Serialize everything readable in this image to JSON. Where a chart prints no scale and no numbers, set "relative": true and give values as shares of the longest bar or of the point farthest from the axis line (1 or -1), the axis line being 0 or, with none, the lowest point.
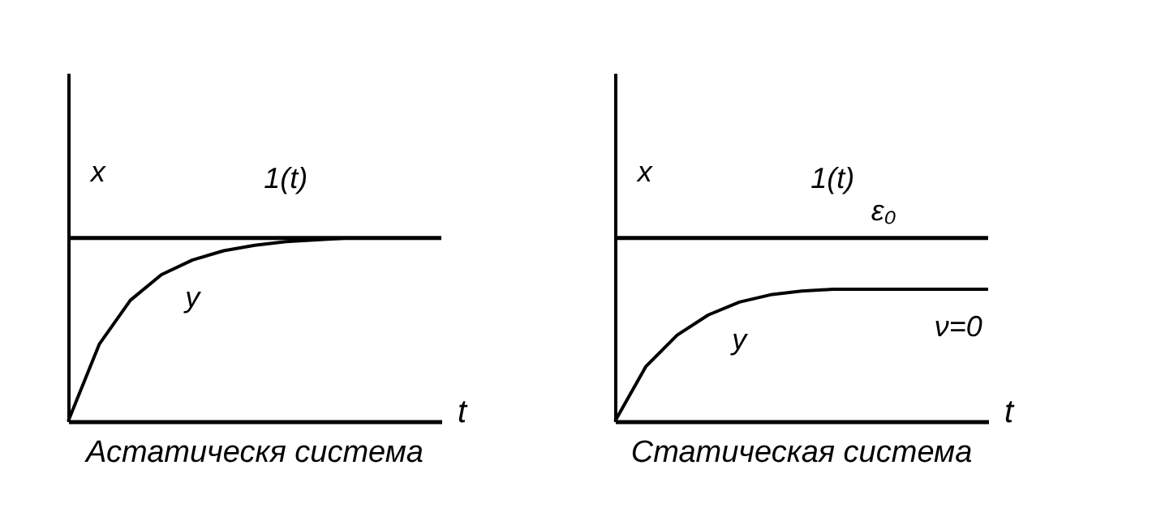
{
  "chart_data": [
    {
      "type": "line",
      "title": "Астатическя система",
      "xlabel": "t",
      "relative": true,
      "line_style": "solid",
      "categories": [
        null,
        null,
        null,
        null,
        null,
        null,
        null,
        null,
        null,
        null,
        null,
        null,
        null
      ],
      "series": [
        {
          "name": "1(t)",
          "color": "#000000",
          "values": [
            1,
            1,
            1,
            1,
            1,
            1,
            1,
            1,
            1,
            1,
            1,
            1,
            1
          ]
        },
        {
          "name": "y",
          "color": "#000000",
          "values": [
            0,
            0.42,
            0.66,
            0.8,
            0.88,
            0.93,
            0.96,
            0.98,
            0.99,
            1,
            null,
            null,
            null
          ]
        }
      ],
      "annotations": [
        "x"
      ]
    },
    {
      "type": "line",
      "title": "Статическая система",
      "xlabel": "t",
      "relative": true,
      "line_style": "solid",
      "categories": [
        null,
        null,
        null,
        null,
        null,
        null,
        null,
        null,
        null,
        null,
        null,
        null,
        null
      ],
      "series": [
        {
          "name": "1(t)",
          "color": "#000000",
          "values": [
            1,
            1,
            1,
            1,
            1,
            1,
            1,
            1,
            1,
            1,
            1,
            1,
            1
          ]
        },
        {
          "name": "y",
          "color": "#000000",
          "values": [
            0,
            0.3,
            0.47,
            0.58,
            0.65,
            0.69,
            0.71,
            0.72,
            0.72,
            0.72,
            0.72,
            0.72,
            0.72
          ]
        }
      ],
      "annotations": [
        "x",
        "ε₀",
        "ν=0"
      ]
    }
  ]
}
